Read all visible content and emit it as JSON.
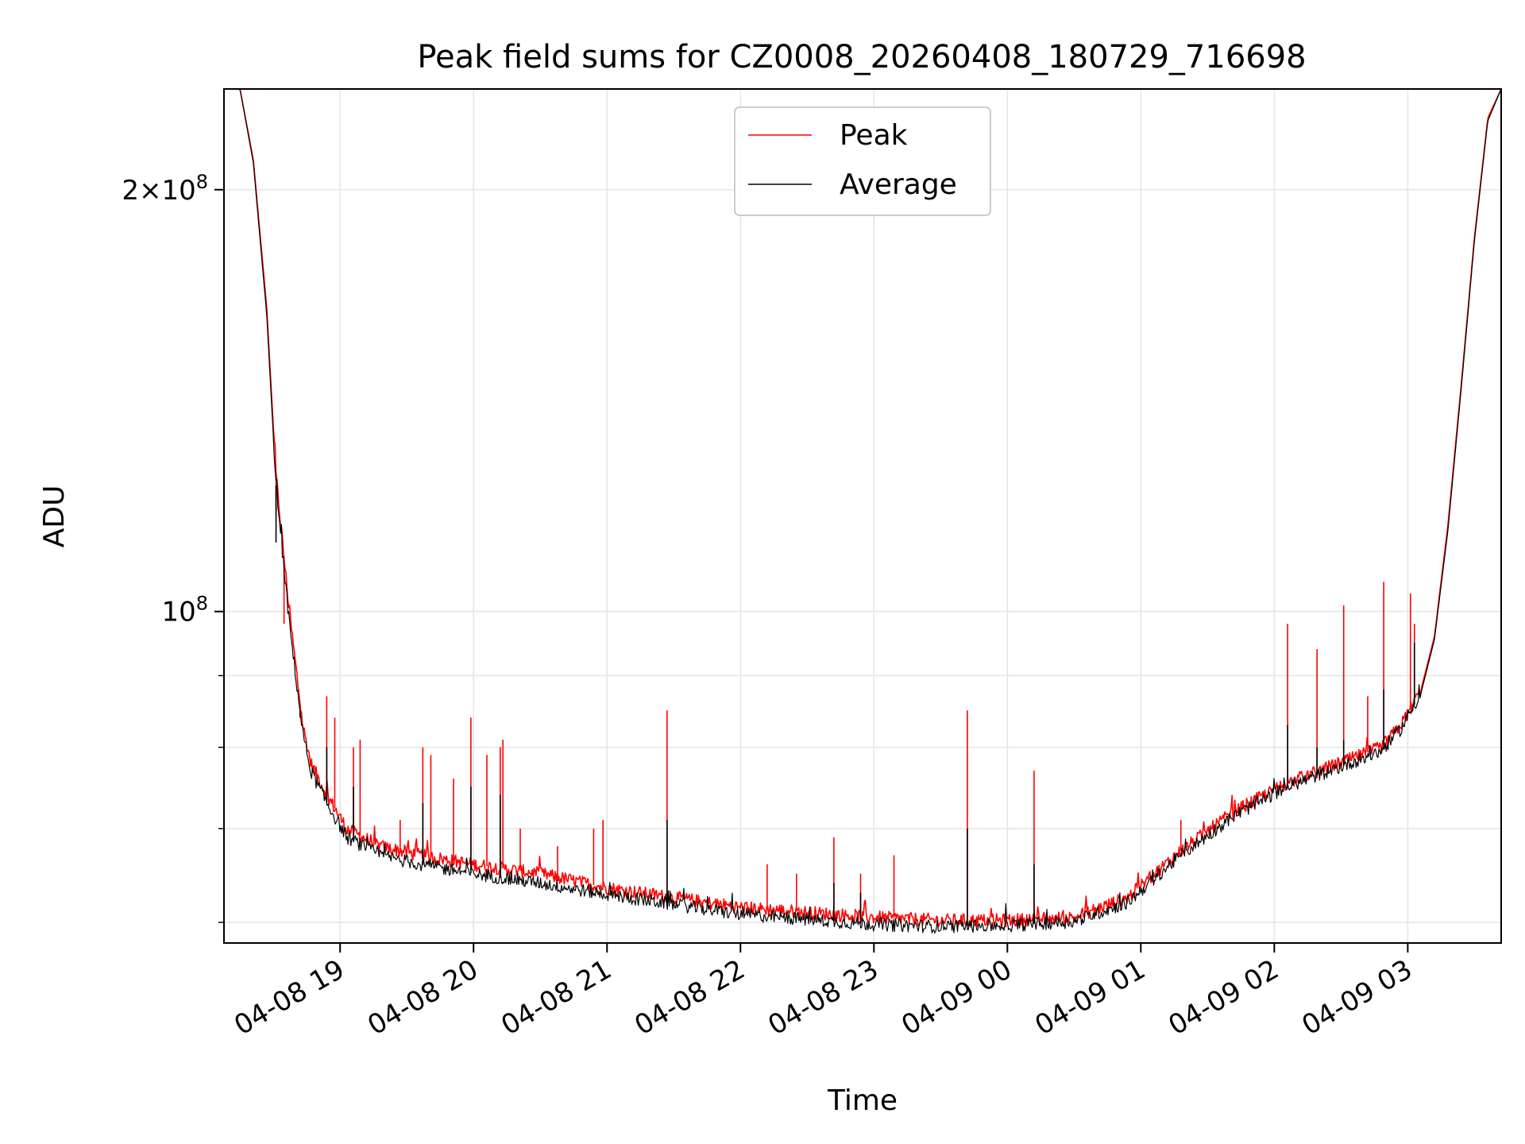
{
  "chart_data": {
    "type": "line",
    "title": "Peak field sums for CZ0008_20260408_180729_716698",
    "xlabel": "Time",
    "ylabel": "ADU",
    "yscale": "log",
    "ylim": [
      58000000,
      236000000
    ],
    "xlim_hours": [
      18.13,
      3.7
    ],
    "grid": true,
    "legend_position": "upper center",
    "x_tick_labels": [
      "04-08 19",
      "04-08 20",
      "04-08 21",
      "04-08 22",
      "04-08 23",
      "04-09 00",
      "04-09 01",
      "04-09 02",
      "04-09 03"
    ],
    "x_tick_hours": [
      19,
      20,
      21,
      22,
      23,
      24,
      25,
      26,
      27
    ],
    "y_major_ticks": [
      {
        "value": 100000000,
        "base": "10",
        "exp": "8",
        "mantissa": ""
      },
      {
        "value": 200000000,
        "base": "10",
        "exp": "8",
        "mantissa": "2×"
      }
    ],
    "y_minor_ticks": [
      60000000,
      70000000,
      80000000,
      90000000
    ],
    "series": [
      {
        "name": "Peak",
        "color": "#ff0000",
        "baseline_hours": [
          18.13,
          18.25,
          18.35,
          18.45,
          18.52,
          18.62,
          18.72,
          18.78,
          18.9,
          19.05,
          19.3,
          19.6,
          20.0,
          20.5,
          21.0,
          21.5,
          22.0,
          22.5,
          23.0,
          23.5,
          24.0,
          24.5,
          24.9,
          25.3,
          25.7,
          26.1,
          26.5,
          26.8,
          26.95,
          27.1,
          27.2,
          27.3,
          27.4,
          27.5,
          27.6,
          27.7
        ],
        "baseline_values": [
          236000000,
          236000000,
          210000000,
          165000000,
          125000000,
          100000000,
          83000000,
          78000000,
          74000000,
          70000000,
          68000000,
          67000000,
          66000000,
          65000000,
          63500000,
          62500000,
          61500000,
          61000000,
          60500000,
          60200000,
          60200000,
          60500000,
          62500000,
          67500000,
          72000000,
          75500000,
          78000000,
          80000000,
          83000000,
          88000000,
          96000000,
          115000000,
          145000000,
          185000000,
          225000000,
          236000000
        ],
        "spike_hours": [
          18.52,
          18.58,
          18.7,
          18.9,
          18.96,
          19.1,
          19.15,
          19.45,
          19.62,
          19.68,
          19.85,
          19.98,
          20.1,
          20.2,
          20.22,
          20.35,
          20.63,
          20.9,
          20.97,
          21.45,
          22.2,
          22.42,
          22.7,
          22.9,
          23.15,
          23.7,
          24.2,
          25.3,
          26.1,
          26.32,
          26.52,
          26.7,
          26.82,
          27.02,
          27.05
        ],
        "spike_values": [
          118000000,
          98000000,
          86000000,
          87000000,
          84000000,
          80000000,
          81000000,
          71000000,
          80000000,
          79000000,
          76000000,
          84000000,
          79000000,
          80000000,
          81000000,
          70000000,
          68000000,
          70000000,
          71000000,
          85000000,
          66000000,
          65000000,
          69000000,
          65000000,
          67000000,
          85000000,
          77000000,
          71000000,
          98000000,
          94000000,
          101000000,
          87000000,
          105000000,
          103000000,
          98000000
        ]
      },
      {
        "name": "Average",
        "color": "#000000",
        "baseline_hours": [
          18.13,
          18.25,
          18.35,
          18.45,
          18.52,
          18.62,
          18.72,
          18.78,
          18.9,
          19.05,
          19.3,
          19.6,
          20.0,
          20.5,
          21.0,
          21.5,
          22.0,
          22.5,
          23.0,
          23.5,
          24.0,
          24.5,
          24.9,
          25.3,
          25.7,
          26.1,
          26.5,
          26.8,
          26.95,
          27.1,
          27.2,
          27.3,
          27.4,
          27.5,
          27.6,
          27.7
        ],
        "baseline_values": [
          236000000,
          236000000,
          209000000,
          163000000,
          123000000,
          98000000,
          82000000,
          77000000,
          73000000,
          69000000,
          67000000,
          66000000,
          65000000,
          64000000,
          62800000,
          61800000,
          60800000,
          60300000,
          59800000,
          59600000,
          59700000,
          60100000,
          62000000,
          67000000,
          71500000,
          75000000,
          77500000,
          79500000,
          82500000,
          87500000,
          95500000,
          114000000,
          144000000,
          184000000,
          224000000,
          236000000
        ],
        "spike_hours": [
          18.52,
          18.7,
          18.9,
          19.1,
          19.62,
          19.98,
          20.2,
          21.45,
          22.7,
          22.9,
          23.7,
          24.2,
          26.1,
          26.32,
          26.52,
          26.82,
          27.05
        ],
        "spike_values": [
          112000000,
          84000000,
          80000000,
          75000000,
          73000000,
          75000000,
          74000000,
          71000000,
          64000000,
          63000000,
          70000000,
          66000000,
          83000000,
          80000000,
          81000000,
          88000000,
          95000000
        ]
      }
    ]
  }
}
